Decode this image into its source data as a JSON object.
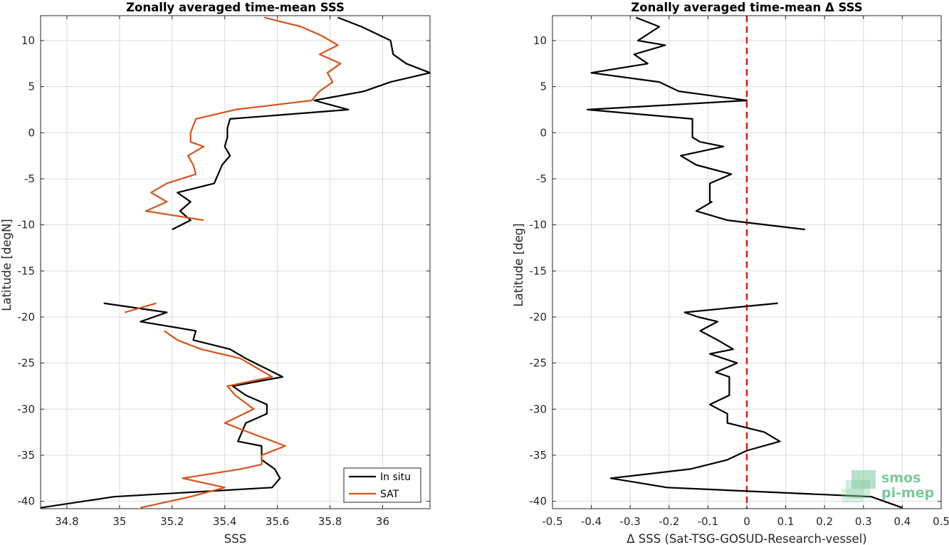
{
  "chart_data": [
    {
      "type": "line",
      "title": "Zonally averaged time-mean SSS",
      "xlabel": "SSS",
      "ylabel": "Latitude [degN]",
      "xlim": [
        34.7,
        36.18
      ],
      "ylim": [
        -40.8,
        12.7
      ],
      "xticks": [
        34.8,
        35,
        35.2,
        35.4,
        35.6,
        35.8,
        36
      ],
      "xtick_labels": [
        "34.8",
        "35",
        "35.2",
        "35.4",
        "35.6",
        "35.8",
        "36"
      ],
      "yticks": [
        10,
        5,
        0,
        -5,
        -10,
        -15,
        -20,
        -25,
        -30,
        -35,
        -40
      ],
      "ytick_labels": [
        "10",
        "5",
        "0",
        "-5",
        "-10",
        "-15",
        "-20",
        "-25",
        "-30",
        "-35",
        "-40"
      ],
      "grid": true,
      "legend": "bottom-right",
      "series": [
        {
          "name": "In situ",
          "color": "#000000",
          "segments": [
            [
              [
                35.83,
                12.5
              ],
              [
                35.92,
                11.5
              ],
              [
                36.03,
                10.0
              ],
              [
                36.04,
                8.5
              ],
              [
                36.09,
                7.5
              ],
              [
                36.18,
                6.5
              ],
              [
                36.03,
                5.5
              ],
              [
                35.93,
                4.5
              ],
              [
                35.74,
                3.5
              ],
              [
                35.87,
                2.5
              ],
              [
                35.42,
                1.5
              ],
              [
                35.41,
                0.5
              ],
              [
                35.41,
                -0.5
              ],
              [
                35.4,
                -1.5
              ],
              [
                35.42,
                -2.5
              ],
              [
                35.39,
                -3.5
              ],
              [
                35.36,
                -5.5
              ],
              [
                35.22,
                -6.5
              ],
              [
                35.27,
                -7.5
              ],
              [
                35.23,
                -8.5
              ],
              [
                35.27,
                -9.5
              ],
              [
                35.2,
                -10.5
              ]
            ],
            [
              [
                34.94,
                -18.5
              ],
              [
                35.18,
                -19.5
              ],
              [
                35.08,
                -20.5
              ],
              [
                35.29,
                -21.5
              ],
              [
                35.28,
                -22.5
              ],
              [
                35.42,
                -23.5
              ],
              [
                35.48,
                -24.5
              ],
              [
                35.62,
                -26.5
              ],
              [
                35.43,
                -27.5
              ],
              [
                35.48,
                -28.5
              ],
              [
                35.56,
                -29.5
              ],
              [
                35.56,
                -30.5
              ],
              [
                35.48,
                -31.5
              ],
              [
                35.45,
                -33.5
              ],
              [
                35.54,
                -34.0
              ],
              [
                35.54,
                -35.5
              ],
              [
                35.59,
                -36.5
              ],
              [
                35.61,
                -37.5
              ],
              [
                35.58,
                -38.5
              ],
              [
                34.98,
                -39.5
              ],
              [
                34.7,
                -40.7
              ]
            ]
          ]
        },
        {
          "name": "SAT",
          "color": "#D95319",
          "segments": [
            [
              [
                35.55,
                12.5
              ],
              [
                35.69,
                11.5
              ],
              [
                35.77,
                10.5
              ],
              [
                35.83,
                9.5
              ],
              [
                35.76,
                8.5
              ],
              [
                35.84,
                7.5
              ],
              [
                35.79,
                6.5
              ],
              [
                35.81,
                5.5
              ],
              [
                35.76,
                4.5
              ],
              [
                35.73,
                3.5
              ],
              [
                35.44,
                2.5
              ],
              [
                35.29,
                1.5
              ],
              [
                35.27,
                0.0
              ],
              [
                35.27,
                -1.0
              ],
              [
                35.32,
                -1.5
              ],
              [
                35.26,
                -2.5
              ],
              [
                35.28,
                -3.5
              ],
              [
                35.29,
                -4.5
              ],
              [
                35.18,
                -5.5
              ],
              [
                35.12,
                -6.5
              ],
              [
                35.18,
                -7.5
              ],
              [
                35.1,
                -8.5
              ],
              [
                35.32,
                -9.5
              ]
            ],
            [
              [
                35.14,
                -18.5
              ],
              [
                35.02,
                -19.5
              ]
            ],
            [
              [
                35.17,
                -21.5
              ],
              [
                35.22,
                -22.5
              ],
              [
                35.31,
                -23.5
              ],
              [
                35.46,
                -24.5
              ],
              [
                35.58,
                -26.5
              ],
              [
                35.41,
                -27.5
              ],
              [
                35.44,
                -28.5
              ],
              [
                35.51,
                -30.0
              ],
              [
                35.4,
                -31.5
              ],
              [
                35.49,
                -32.5
              ],
              [
                35.63,
                -34.0
              ],
              [
                35.54,
                -35.0
              ],
              [
                35.54,
                -36.0
              ],
              [
                35.46,
                -36.5
              ],
              [
                35.24,
                -37.5
              ],
              [
                35.4,
                -38.5
              ],
              [
                35.27,
                -39.5
              ],
              [
                35.08,
                -40.7
              ]
            ]
          ]
        }
      ]
    },
    {
      "type": "line",
      "title": "Zonally averaged time-mean Δ SSS",
      "xlabel": "Δ SSS (Sat-TSG-GOSUD-Research-vessel)",
      "ylabel": "Latitude [deg]",
      "xlim": [
        -0.5,
        0.5
      ],
      "ylim": [
        -40.8,
        12.7
      ],
      "xticks": [
        -0.5,
        -0.4,
        -0.3,
        -0.2,
        -0.1,
        0,
        0.1,
        0.2,
        0.3,
        0.4,
        0.5
      ],
      "xtick_labels": [
        "-0.5",
        "-0.4",
        "-0.3",
        "-0.2",
        "-0.1",
        "0",
        "0.1",
        "0.2",
        "0.3",
        "0.4",
        "0.5"
      ],
      "yticks": [
        10,
        5,
        0,
        -5,
        -10,
        -15,
        -20,
        -25,
        -30,
        -35,
        -40
      ],
      "ytick_labels": [
        "10",
        "5",
        "0",
        "-5",
        "-10",
        "-15",
        "-20",
        "-25",
        "-30",
        "-35",
        "-40"
      ],
      "grid": true,
      "reference_line": {
        "x": 0,
        "color": "#E41A1C",
        "style": "dashed"
      },
      "series": [
        {
          "color": "#000000",
          "segments": [
            [
              [
                -0.285,
                12.5
              ],
              [
                -0.225,
                11.5
              ],
              [
                -0.28,
                10.0
              ],
              [
                -0.21,
                9.5
              ],
              [
                -0.29,
                8.5
              ],
              [
                -0.255,
                7.5
              ],
              [
                -0.4,
                6.5
              ],
              [
                -0.225,
                5.5
              ],
              [
                -0.175,
                4.5
              ],
              [
                0.0,
                3.5
              ],
              [
                -0.41,
                2.5
              ],
              [
                -0.14,
                1.5
              ],
              [
                -0.14,
                -0.5
              ],
              [
                -0.12,
                -1.0
              ],
              [
                -0.06,
                -1.5
              ],
              [
                -0.17,
                -2.5
              ],
              [
                -0.13,
                -3.5
              ],
              [
                -0.04,
                -4.5
              ],
              [
                -0.095,
                -5.5
              ],
              [
                -0.095,
                -7.5
              ],
              [
                -0.09,
                -7.5
              ],
              [
                -0.13,
                -8.5
              ],
              [
                -0.05,
                -9.5
              ],
              [
                0.15,
                -10.5
              ]
            ],
            [
              [
                0.08,
                -18.5
              ],
              [
                -0.16,
                -19.5
              ],
              [
                -0.125,
                -20.0
              ],
              [
                -0.075,
                -20.5
              ],
              [
                -0.12,
                -21.5
              ],
              [
                -0.075,
                -22.5
              ],
              [
                -0.035,
                -23.5
              ],
              [
                -0.095,
                -24.0
              ],
              [
                -0.025,
                -25.0
              ],
              [
                -0.08,
                -26.0
              ],
              [
                -0.045,
                -26.5
              ],
              [
                -0.045,
                -28.5
              ],
              [
                -0.095,
                -29.5
              ],
              [
                -0.05,
                -30.5
              ],
              [
                -0.05,
                -31.5
              ],
              [
                0.045,
                -32.5
              ],
              [
                0.085,
                -33.5
              ],
              [
                0.0,
                -34.5
              ],
              [
                -0.05,
                -35.5
              ],
              [
                -0.145,
                -36.5
              ],
              [
                -0.35,
                -37.5
              ],
              [
                -0.205,
                -38.5
              ],
              [
                0.32,
                -39.5
              ],
              [
                0.4,
                -40.7
              ]
            ]
          ]
        }
      ]
    }
  ],
  "legend": {
    "entries": [
      {
        "label": "In situ",
        "color": "#000000"
      },
      {
        "label": "SAT",
        "color": "#D95319"
      }
    ]
  },
  "logo": {
    "line1": "smos",
    "line2": "pi-mep",
    "color": "#7CC89A"
  }
}
